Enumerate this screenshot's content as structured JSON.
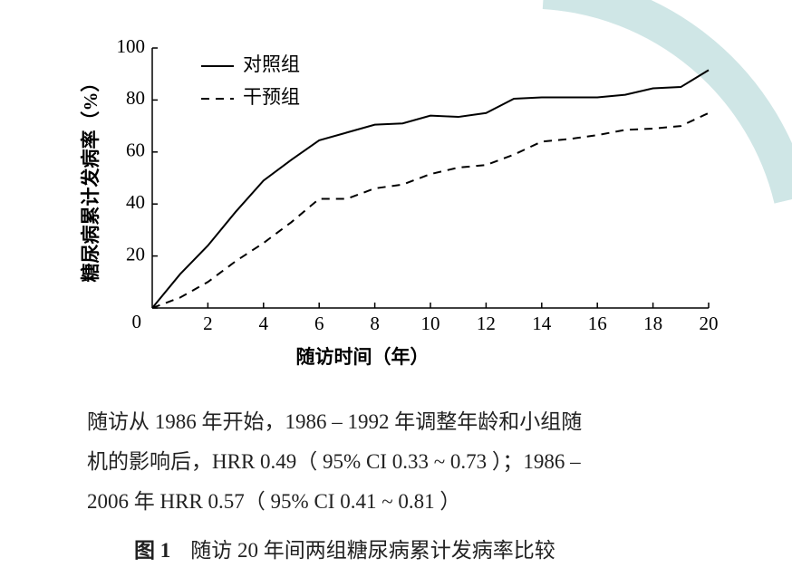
{
  "chart_data": {
    "type": "line",
    "x_label": "随访时间（年）",
    "y_label": "糖尿病累计发病率（%）",
    "x": [
      0,
      1,
      2,
      3,
      4,
      5,
      6,
      7,
      8,
      9,
      10,
      11,
      12,
      13,
      14,
      15,
      16,
      17,
      18,
      19,
      20
    ],
    "series": [
      {
        "name": "对照组",
        "color": "#000000",
        "linestyle": "solid",
        "values": [
          0,
          13,
          24,
          37,
          49,
          57,
          64.5,
          67.5,
          70.5,
          71,
          74,
          73.5,
          75,
          80.5,
          81,
          81,
          81,
          82,
          84.5,
          85,
          91.5
        ]
      },
      {
        "name": "干预组",
        "color": "#000000",
        "linestyle": "dashed",
        "values": [
          0,
          4,
          10,
          18,
          25,
          33,
          42,
          42,
          46,
          47.5,
          51.5,
          54,
          55,
          59,
          64,
          65,
          66.5,
          68.5,
          69,
          70,
          75
        ]
      }
    ],
    "xlim": [
      0,
      20
    ],
    "ylim": [
      0,
      100
    ],
    "xticks": [
      2,
      4,
      6,
      8,
      10,
      12,
      14,
      16,
      18,
      20
    ],
    "yticks": [
      0,
      20,
      40,
      60,
      80,
      100
    ],
    "grid": false,
    "legend": "upper left"
  },
  "note_lines": [
    "随访从 1986 年开始，1986 – 1992 年调整年龄和小组随",
    "机的影响后，HRR 0.49（ 95% CI 0.33 ~ 0.73 ）；1986 –",
    "2006 年 HRR 0.57（ 95% CI 0.41 ~ 0.81 ）"
  ],
  "figure_label": "图 1",
  "figure_title": "随访 20 年间两组糖尿病累计发病率比较"
}
